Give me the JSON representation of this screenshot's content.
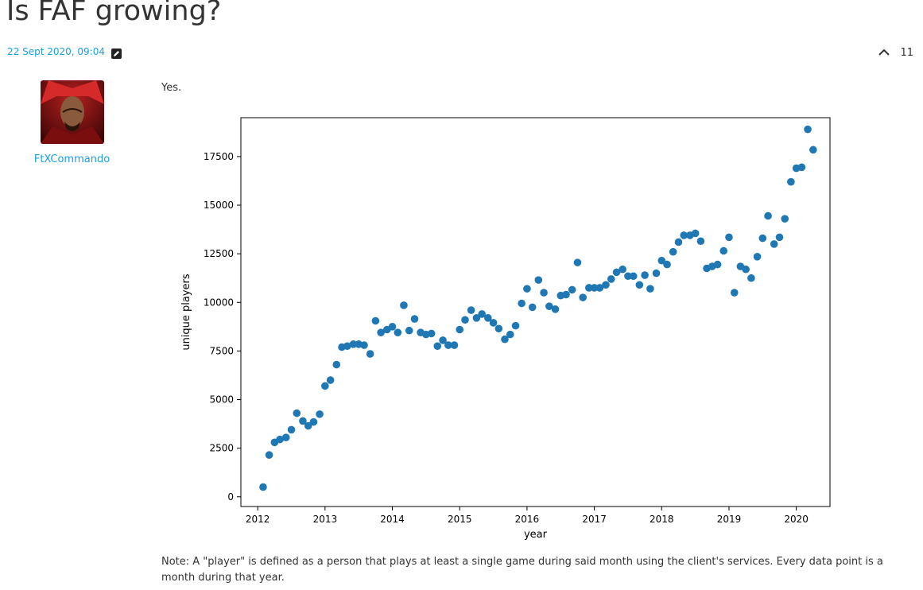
{
  "post": {
    "title": "Is FAF growing?",
    "timestamp": "22 Sept 2020, 09:04",
    "vote_count": "11",
    "author": "FtXCommando",
    "body_text": "Yes.",
    "note": "Note: A \"player\" is defined as a person that plays at least a single game during said month using the client's services. Every data point is a month during that year."
  },
  "icons": {
    "edit": "edit-icon",
    "upvote": "chevron-up-icon"
  },
  "colors": {
    "link": "#1a9fe0",
    "point": "#1f77b4"
  },
  "chart_data": {
    "type": "scatter",
    "xlabel": "year",
    "ylabel": "unique players",
    "xlim": [
      2011.75,
      2020.5
    ],
    "ylim": [
      -500,
      19500
    ],
    "x_ticks": [
      2012,
      2013,
      2014,
      2015,
      2016,
      2017,
      2018,
      2019,
      2020
    ],
    "y_ticks": [
      0,
      2500,
      5000,
      7500,
      10000,
      12500,
      15000,
      17500
    ],
    "y_tick_labels": [
      "0",
      "2500",
      "5000",
      "7500",
      "10000",
      "12500",
      "15000",
      "17500"
    ],
    "series": [
      {
        "x": [
          2012.08,
          2012.17,
          2012.25,
          2012.33,
          2012.42,
          2012.5,
          2012.58,
          2012.67,
          2012.75,
          2012.83,
          2012.92,
          2013.0,
          2013.08,
          2013.17,
          2013.25,
          2013.33,
          2013.42,
          2013.5,
          2013.58,
          2013.67,
          2013.75,
          2013.83,
          2013.92,
          2014.0,
          2014.08,
          2014.17,
          2014.25,
          2014.33,
          2014.42,
          2014.5,
          2014.58,
          2014.67,
          2014.75,
          2014.83,
          2014.92,
          2015.0,
          2015.08,
          2015.17,
          2015.25,
          2015.33,
          2015.42,
          2015.5,
          2015.58,
          2015.67,
          2015.75,
          2015.83,
          2015.92,
          2016.0,
          2016.08,
          2016.17,
          2016.25,
          2016.33,
          2016.42,
          2016.5,
          2016.58,
          2016.67,
          2016.75,
          2016.83,
          2016.92,
          2017.0,
          2017.08,
          2017.17,
          2017.25,
          2017.33,
          2017.42,
          2017.5,
          2017.58,
          2017.67,
          2017.75,
          2017.83,
          2017.92,
          2018.0,
          2018.08,
          2018.17,
          2018.25,
          2018.33,
          2018.42,
          2018.5,
          2018.58,
          2018.67,
          2018.75,
          2018.83,
          2018.92,
          2019.0,
          2019.08,
          2019.17,
          2019.25,
          2019.33,
          2019.42,
          2019.5,
          2019.58,
          2019.67,
          2019.75,
          2019.83,
          2019.92,
          2020.0,
          2020.08,
          2020.17,
          2020.25
        ],
        "y": [
          500,
          2150,
          2800,
          2950,
          3050,
          3450,
          4300,
          3900,
          3650,
          3850,
          4250,
          5700,
          6000,
          6800,
          7700,
          7750,
          7850,
          7850,
          7800,
          7350,
          9050,
          8450,
          8600,
          8750,
          8450,
          9850,
          8550,
          9150,
          8450,
          8350,
          8400,
          7750,
          8050,
          7800,
          7800,
          8600,
          9100,
          9600,
          9200,
          9400,
          9200,
          8950,
          8650,
          8100,
          8350,
          8800,
          9950,
          10700,
          9750,
          11150,
          10500,
          9800,
          9650,
          10350,
          10400,
          10650,
          12050,
          10250,
          10750,
          10750,
          10750,
          10900,
          11200,
          11550,
          11700,
          11350,
          11350,
          10900,
          11400,
          10700,
          11500,
          12150,
          11950,
          12600,
          13100,
          13450,
          13450,
          13550,
          13150,
          11750,
          11850,
          11950,
          12650,
          13350,
          10500,
          11850,
          11700,
          11250,
          12350,
          13300,
          14450,
          13000,
          13350,
          14300,
          16200,
          16900,
          16950,
          18900,
          17850
        ]
      }
    ]
  }
}
